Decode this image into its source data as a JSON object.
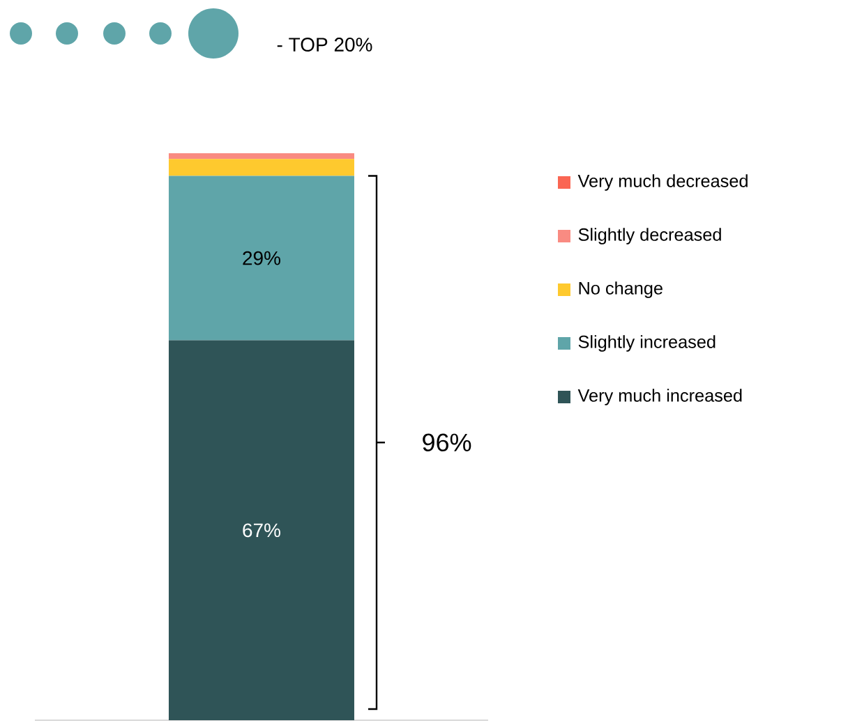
{
  "chart_data": {
    "type": "bar",
    "stacked": true,
    "categories": [
      null
    ],
    "ylim": [
      0,
      100
    ],
    "legend": "right",
    "series": [
      {
        "name": "Very much increased",
        "color": "#2f5457",
        "values": [
          67
        ],
        "value_labels": [
          "67%"
        ]
      },
      {
        "name": "Slightly increased",
        "color": "#5fa5a9",
        "values": [
          29
        ],
        "value_labels": [
          "29%"
        ]
      },
      {
        "name": "No change",
        "color": "#fec92e",
        "values": [
          3
        ]
      },
      {
        "name": "Slightly decreased",
        "color": "#f98b82",
        "values": [
          1
        ]
      },
      {
        "name": "Very much decreased",
        "color": "#fa6653",
        "values": [
          0
        ]
      }
    ],
    "annotations": [
      "- TOP 20%",
      "96%"
    ]
  }
}
